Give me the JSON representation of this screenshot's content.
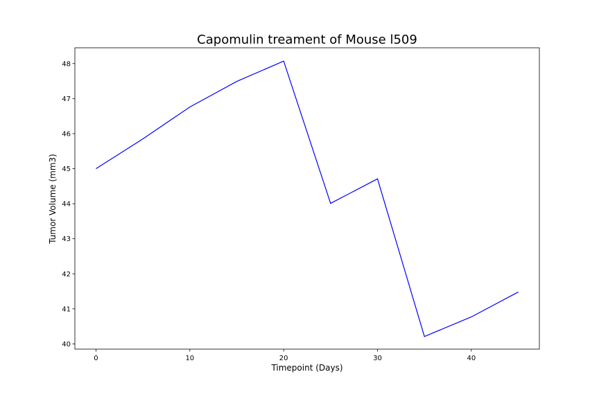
{
  "chart_data": {
    "type": "line",
    "title": "Capomulin treament of Mouse l509",
    "xlabel": "Timepoint (Days)",
    "ylabel": "Tumor Volume (mm3)",
    "xlim": [
      -2.25,
      47.25
    ],
    "ylim": [
      39.85,
      48.45
    ],
    "x_ticks": [
      0,
      10,
      20,
      30,
      40
    ],
    "y_ticks": [
      40,
      41,
      42,
      43,
      44,
      45,
      46,
      47,
      48
    ],
    "grid": false,
    "legend": "none",
    "series": [
      {
        "color": "#0000ff",
        "x": [
          0,
          5,
          10,
          15,
          20,
          25,
          30,
          35,
          40,
          45
        ],
        "y": [
          45.0,
          45.85,
          46.76,
          47.49,
          48.07,
          44.01,
          44.71,
          40.21,
          40.77,
          41.48
        ]
      }
    ]
  }
}
